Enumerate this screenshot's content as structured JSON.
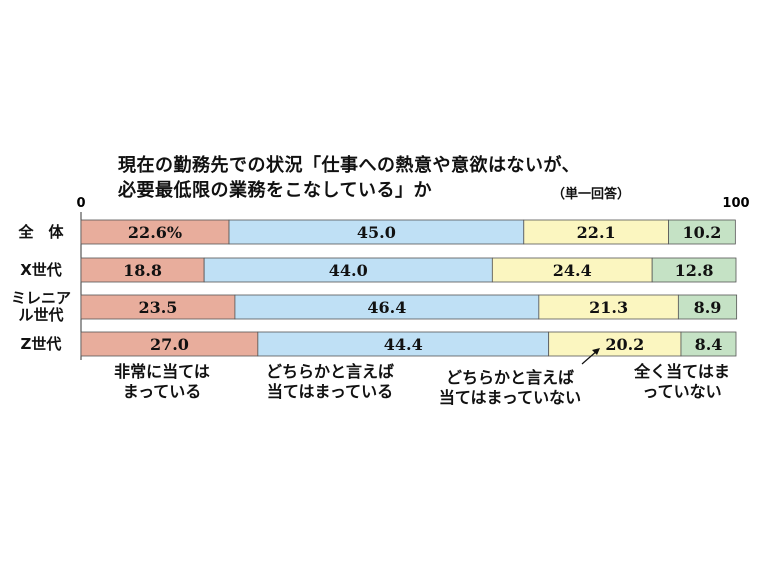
{
  "chart_data": {
    "type": "bar",
    "orientation": "horizontal",
    "stacked": true,
    "title_lines": [
      "現在の勤務先での状況「仕事への熱意や意欲はないが、",
      "必要最低限の業務をこなしている」か"
    ],
    "note": "（単一回答）",
    "xlim": [
      0,
      100
    ],
    "axis_ticks": [
      "0",
      "100"
    ],
    "categories": [
      {
        "label_lines": [
          "全　体"
        ]
      },
      {
        "label_lines": [
          "X世代"
        ]
      },
      {
        "label_lines": [
          "ミレニア",
          "ル世代"
        ]
      },
      {
        "label_lines": [
          "Z世代"
        ]
      }
    ],
    "series": [
      {
        "name_lines": [
          "非常に当ては",
          "まっている"
        ],
        "color": "#e8ad9c",
        "values": [
          22.6,
          18.8,
          23.5,
          27.0
        ],
        "labels": [
          "22.6%",
          "18.8",
          "23.5",
          "27.0"
        ]
      },
      {
        "name_lines": [
          "どちらかと言えば",
          "当てはまっている"
        ],
        "color": "#bfe0f5",
        "values": [
          45.0,
          44.0,
          46.4,
          44.4
        ],
        "labels": [
          "45.0",
          "44.0",
          "46.4",
          "44.4"
        ]
      },
      {
        "name_lines": [
          "どちらかと言えば",
          "当てはまっていない"
        ],
        "color": "#fbf6c0",
        "values": [
          22.1,
          24.4,
          21.3,
          20.2
        ],
        "labels": [
          "22.1",
          "24.4",
          "21.3",
          "20.2"
        ]
      },
      {
        "name_lines": [
          "全く当てはま",
          "っていない"
        ],
        "color": "#c5e2c5",
        "values": [
          10.2,
          12.8,
          8.9,
          8.4
        ],
        "labels": [
          "10.2",
          "12.8",
          "8.9",
          "8.4"
        ]
      }
    ],
    "grid": false,
    "legend": "bottom"
  }
}
